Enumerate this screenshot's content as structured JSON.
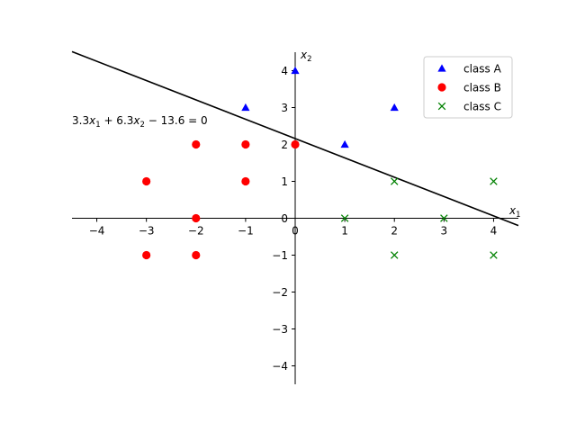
{
  "chart_data": {
    "type": "scatter",
    "xlim": [
      -4.5,
      4.5
    ],
    "ylim": [
      -4.5,
      4.5
    ],
    "xticks": [
      -4,
      -3,
      -2,
      -1,
      0,
      1,
      2,
      3,
      4
    ],
    "yticks": [
      -4,
      -3,
      -2,
      -1,
      0,
      1,
      2,
      3,
      4
    ],
    "xlabel": "x_1",
    "ylabel": "x_2",
    "grid": false,
    "legend_position": "top-right",
    "series": [
      {
        "name": "class A",
        "marker": "triangle",
        "color": "#0000ff",
        "points": [
          [
            0,
            4
          ],
          [
            -1,
            3
          ],
          [
            2,
            3
          ],
          [
            1,
            2
          ]
        ]
      },
      {
        "name": "class B",
        "marker": "circle",
        "color": "#ff0000",
        "points": [
          [
            -2,
            2
          ],
          [
            -1,
            2
          ],
          [
            0,
            2
          ],
          [
            -3,
            1
          ],
          [
            -1,
            1
          ],
          [
            -2,
            0
          ],
          [
            -3,
            -1
          ],
          [
            -2,
            -1
          ]
        ]
      },
      {
        "name": "class C",
        "marker": "x",
        "color": "#008000",
        "points": [
          [
            2,
            1
          ],
          [
            4,
            1
          ],
          [
            1,
            0
          ],
          [
            3,
            0
          ],
          [
            2,
            -1
          ],
          [
            4,
            -1
          ]
        ]
      }
    ],
    "decision_boundary": {
      "a": 3.3,
      "b": 6.3,
      "c": -13.6,
      "label": "3.3x_1 + 6.3x_2 − 13.6 = 0",
      "color": "#000000",
      "x_range": [
        -4.5,
        4.5
      ]
    }
  }
}
